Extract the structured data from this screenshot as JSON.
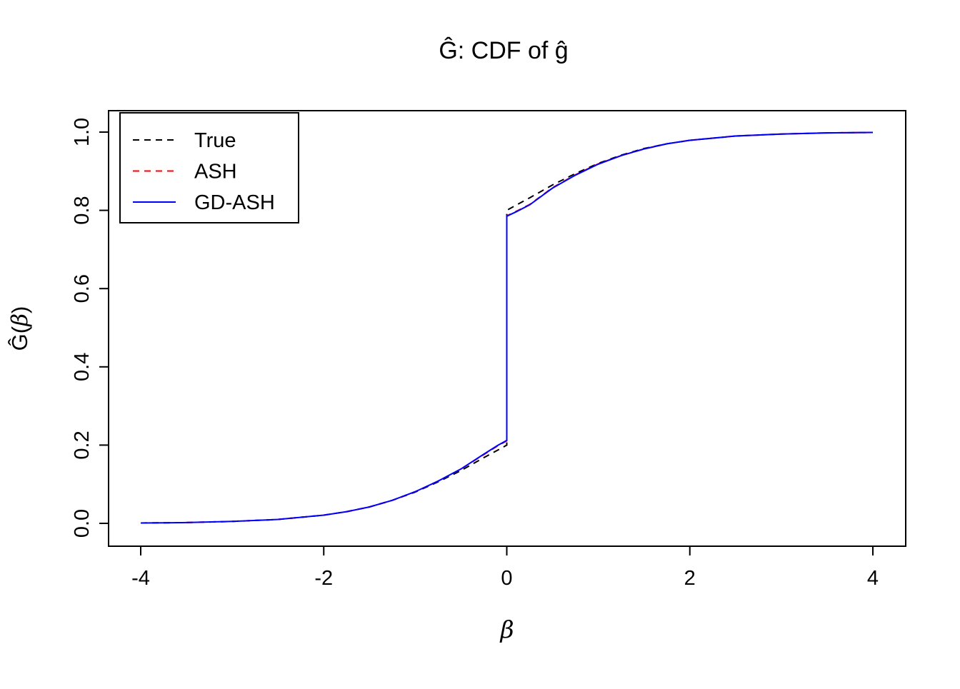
{
  "chart_data": {
    "type": "line",
    "title": "Ĝ: CDF of ĝ",
    "xlabel": "β",
    "ylabel": "Ĝ(β)",
    "ylabel_parts": {
      "prefix": "Ĝ(",
      "beta": "β",
      "suffix": ")"
    },
    "xlim": [
      -4,
      4
    ],
    "ylim": [
      0,
      1
    ],
    "grid": false,
    "x_ticks": [
      {
        "value": -4,
        "label": "-4"
      },
      {
        "value": -2,
        "label": "-2"
      },
      {
        "value": 0,
        "label": "0"
      },
      {
        "value": 2,
        "label": "2"
      },
      {
        "value": 4,
        "label": "4"
      }
    ],
    "y_ticks": [
      {
        "value": 0.0,
        "label": "0.0"
      },
      {
        "value": 0.2,
        "label": "0.2"
      },
      {
        "value": 0.4,
        "label": "0.4"
      },
      {
        "value": 0.6,
        "label": "0.6"
      },
      {
        "value": 0.8,
        "label": "0.8"
      },
      {
        "value": 1.0,
        "label": "1.0"
      }
    ],
    "x": [
      -4.0,
      -3.5,
      -3.0,
      -2.5,
      -2.0,
      -1.75,
      -1.5,
      -1.25,
      -1.0,
      -0.75,
      -0.5,
      -0.25,
      -0.1,
      0.0,
      0.0,
      0.1,
      0.25,
      0.5,
      0.75,
      1.0,
      1.25,
      1.5,
      1.75,
      2.0,
      2.5,
      3.0,
      3.5,
      4.0
    ],
    "series": [
      {
        "name": "True",
        "color": "#000000",
        "style": "dashed",
        "values": [
          0.001,
          0.002,
          0.005,
          0.01,
          0.021,
          0.03,
          0.042,
          0.059,
          0.08,
          0.106,
          0.135,
          0.168,
          0.187,
          0.2,
          0.8,
          0.813,
          0.832,
          0.865,
          0.894,
          0.92,
          0.941,
          0.958,
          0.97,
          0.979,
          0.99,
          0.995,
          0.998,
          0.999
        ]
      },
      {
        "name": "ASH",
        "color": "#FF0000",
        "style": "dashed",
        "values": [
          0.001,
          0.002,
          0.005,
          0.01,
          0.021,
          0.03,
          0.042,
          0.059,
          0.081,
          0.108,
          0.139,
          0.176,
          0.198,
          0.211,
          0.786,
          0.797,
          0.815,
          0.858,
          0.891,
          0.919,
          0.94,
          0.957,
          0.97,
          0.979,
          0.99,
          0.995,
          0.998,
          0.999
        ]
      },
      {
        "name": "GD-ASH",
        "color": "#0000FF",
        "style": "solid",
        "values": [
          0.001,
          0.002,
          0.005,
          0.01,
          0.021,
          0.03,
          0.042,
          0.059,
          0.081,
          0.108,
          0.139,
          0.177,
          0.199,
          0.212,
          0.785,
          0.796,
          0.814,
          0.857,
          0.89,
          0.918,
          0.94,
          0.957,
          0.97,
          0.979,
          0.99,
          0.995,
          0.998,
          0.999
        ]
      }
    ],
    "legend": {
      "position": "top-left",
      "entries": [
        "True",
        "ASH",
        "GD-ASH"
      ]
    }
  }
}
